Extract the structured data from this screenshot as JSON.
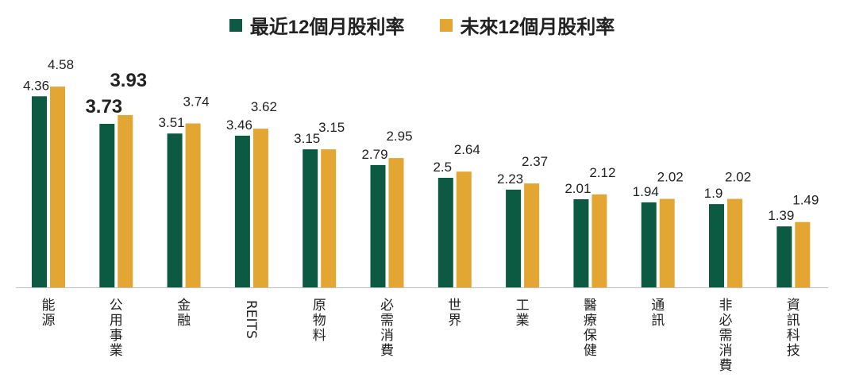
{
  "chart_data": {
    "type": "bar",
    "categories": [
      "能源",
      "公用事業",
      "金融",
      "REITS",
      "原物料",
      "必需消費",
      "世界",
      "工業",
      "醫療保健",
      "通訊",
      "非必需消費",
      "資訊科技"
    ],
    "series": [
      {
        "name": "最近12個月股利率",
        "color": "#0b5a41",
        "values": [
          4.36,
          3.73,
          3.51,
          3.46,
          3.15,
          2.79,
          2.5,
          2.23,
          2.01,
          1.94,
          1.9,
          1.39
        ],
        "labels": [
          "4.36",
          "3.73",
          "3.51",
          "3.46",
          "3.15",
          "2.79",
          "2.5",
          "2.23",
          "2.01",
          "1.94",
          "1.9",
          "1.39"
        ]
      },
      {
        "name": "未來12個月股利率",
        "color": "#e4a632",
        "values": [
          4.58,
          3.93,
          3.74,
          3.62,
          3.15,
          2.95,
          2.64,
          2.37,
          2.12,
          2.02,
          2.02,
          1.49
        ],
        "labels": [
          "4.58",
          "3.93",
          "3.74",
          "3.62",
          "3.15",
          "2.95",
          "2.64",
          "2.37",
          "2.12",
          "2.02",
          "2.02",
          "1.49"
        ]
      }
    ],
    "emphasized": [
      {
        "series": 0,
        "index": 1
      },
      {
        "series": 1,
        "index": 1
      }
    ],
    "title": "",
    "xlabel": "",
    "ylabel": "",
    "ylim": [
      0,
      4.6
    ],
    "grid": false,
    "legend": "top-center"
  }
}
